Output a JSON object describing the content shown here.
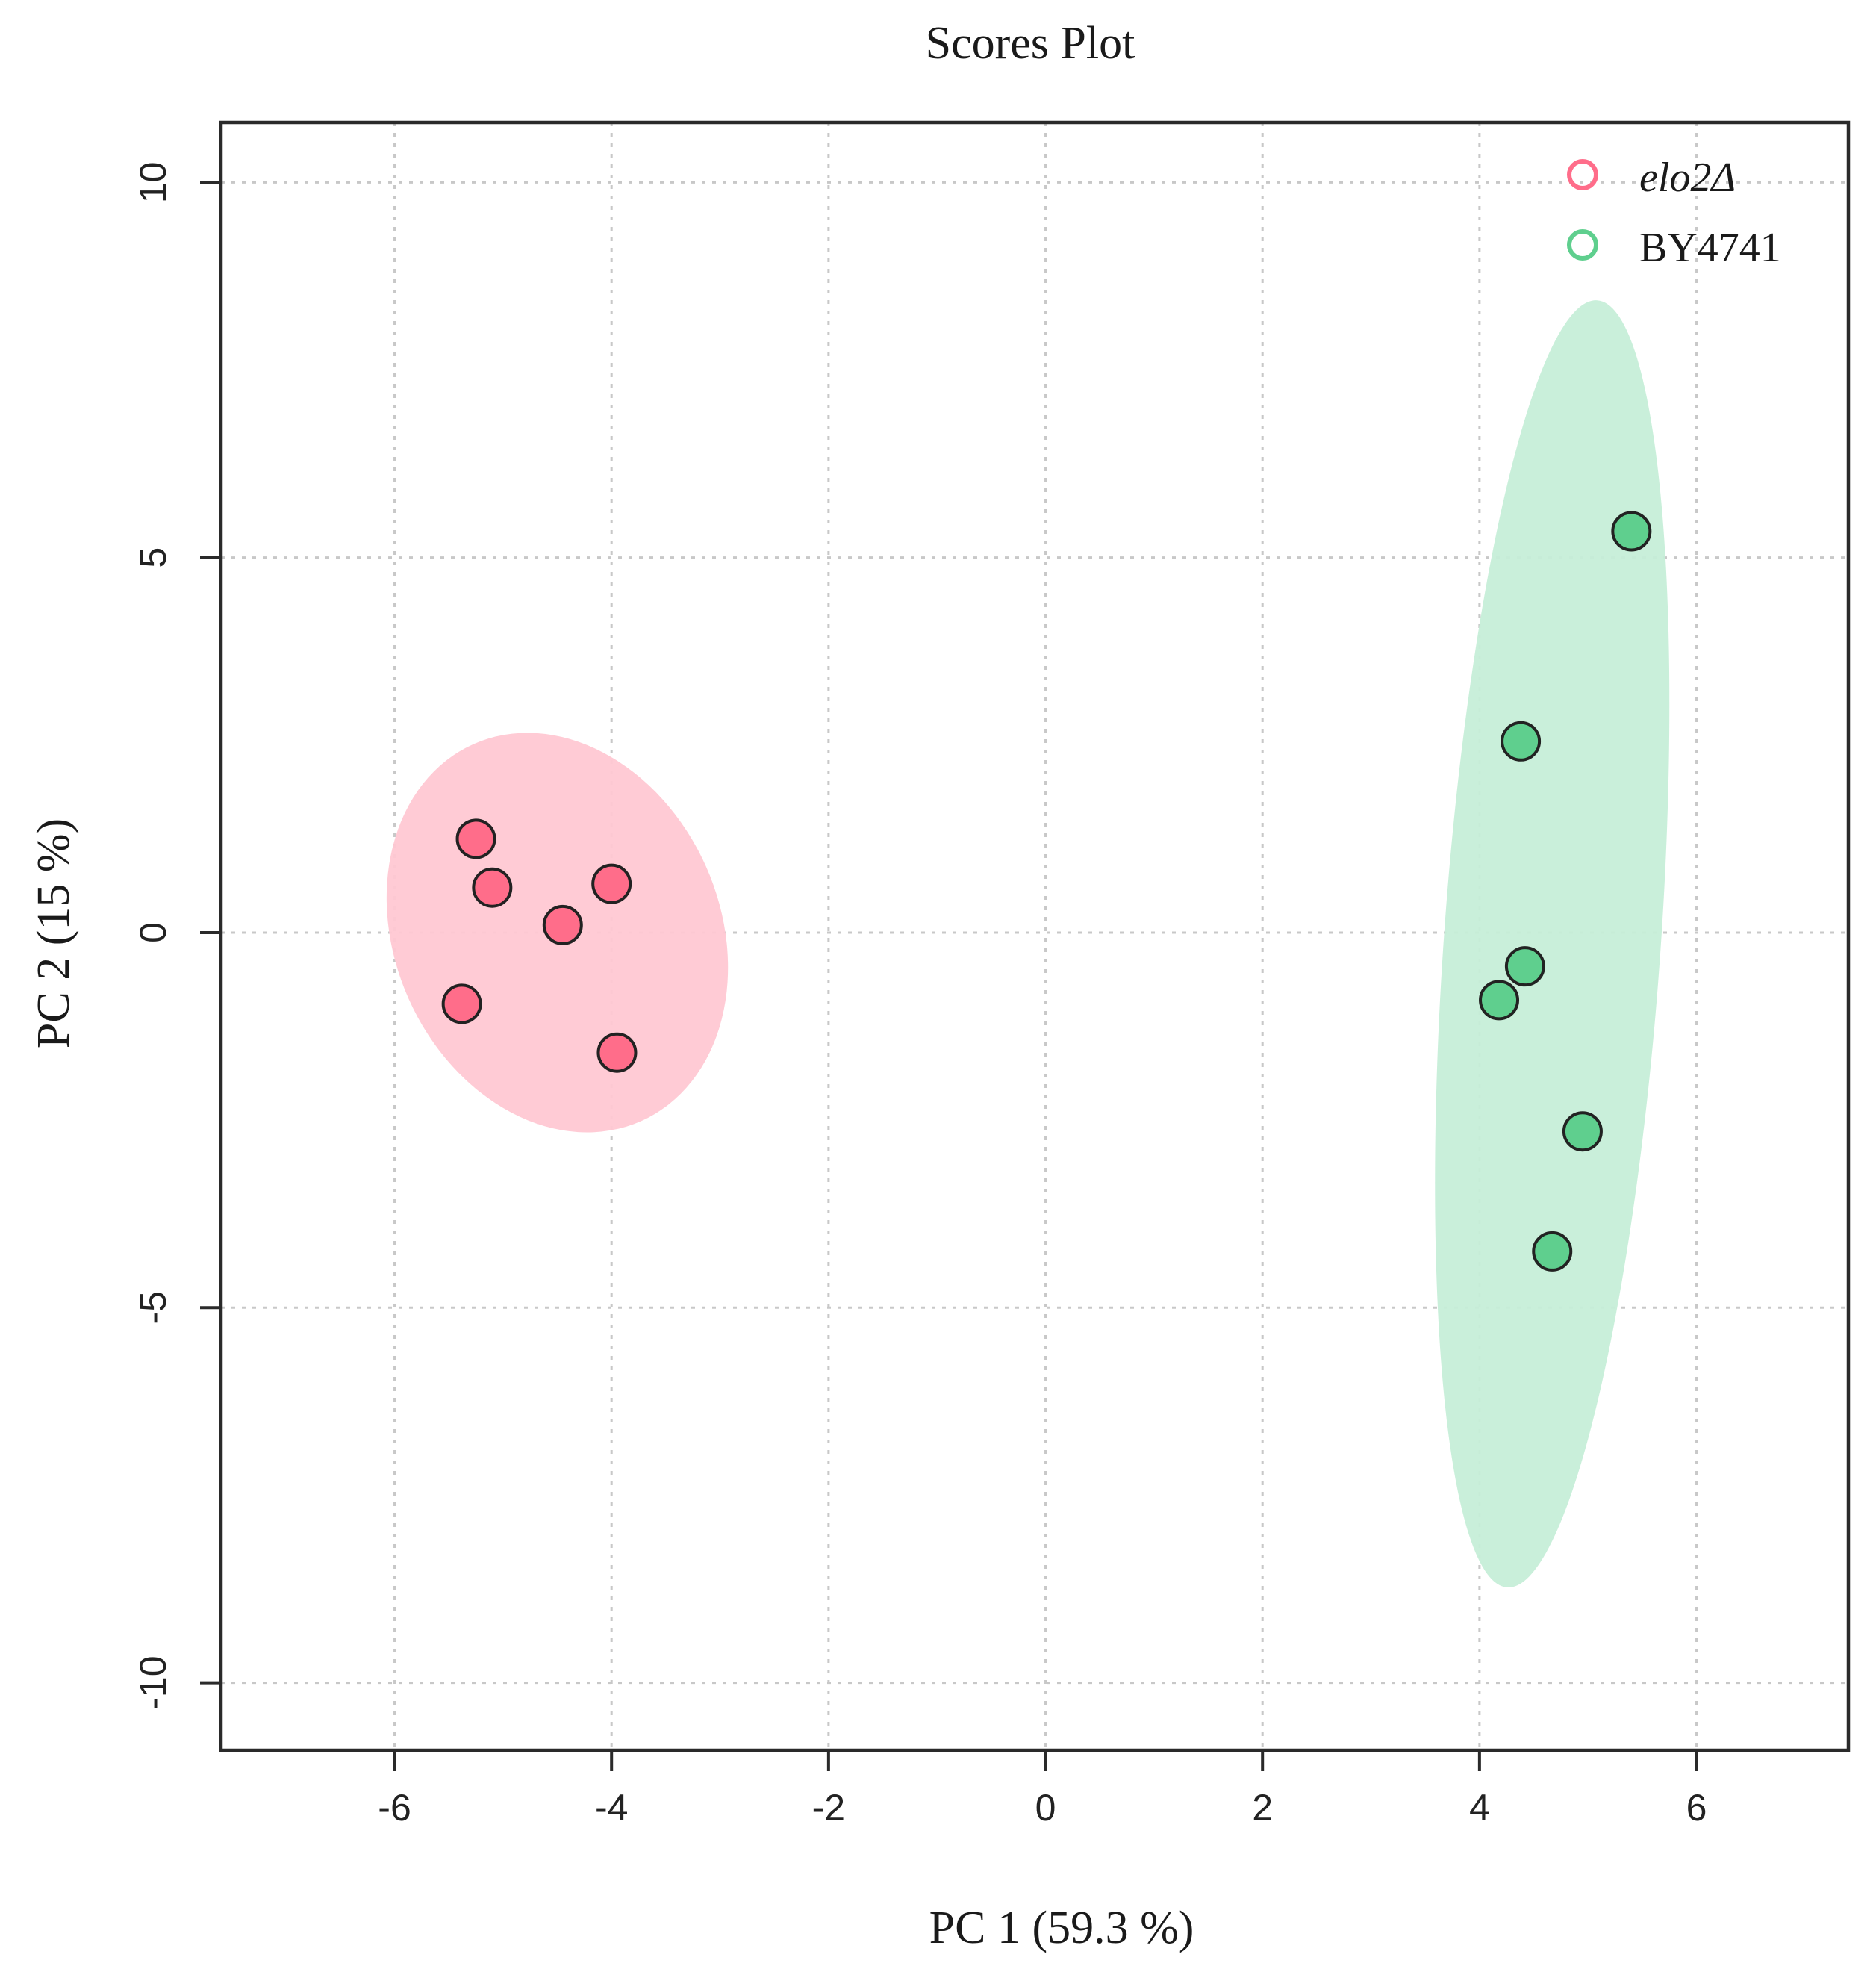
{
  "chart_data": {
    "type": "scatter",
    "title": "Scores Plot",
    "xlabel": "PC 1 (59.3 %)",
    "ylabel": "PC 2 (15 %)",
    "xlim": [
      -7.6,
      7.4
    ],
    "ylim": [
      -10.9,
      10.8
    ],
    "xticks": [
      -6,
      -4,
      -2,
      0,
      2,
      4,
      6
    ],
    "yticks": [
      -10,
      -5,
      0,
      5,
      10
    ],
    "grid": true,
    "legend_position": "top-right",
    "series": [
      {
        "name": "elo2Δ",
        "color": "#ff6d8a",
        "ellipse_color": "#ffc8d3",
        "points": [
          {
            "x": -5.25,
            "y": 1.25
          },
          {
            "x": -5.1,
            "y": 0.6
          },
          {
            "x": -4.45,
            "y": 0.1
          },
          {
            "x": -4.0,
            "y": 0.65
          },
          {
            "x": -5.38,
            "y": -0.95
          },
          {
            "x": -3.95,
            "y": -1.6
          }
        ],
        "ellipse": {
          "cx": -4.5,
          "cy": 0.0,
          "rx": 1.5,
          "ry": 2.75,
          "angle": -24
        }
      },
      {
        "name": "BY4741",
        "color": "#5fcf8e",
        "ellipse_color": "#c6eed8",
        "points": [
          {
            "x": 5.4,
            "y": 5.35
          },
          {
            "x": 4.38,
            "y": 2.55
          },
          {
            "x": 4.42,
            "y": -0.45
          },
          {
            "x": 4.18,
            "y": -0.9
          },
          {
            "x": 4.95,
            "y": -2.65
          },
          {
            "x": 4.67,
            "y": -4.25
          }
        ],
        "ellipse": {
          "cx": 4.67,
          "cy": -0.15,
          "rx": 1.0,
          "ry": 8.6,
          "angle": 4
        }
      }
    ]
  }
}
